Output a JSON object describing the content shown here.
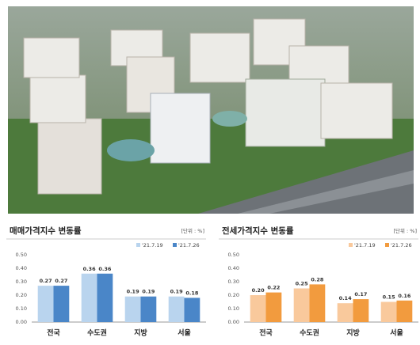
{
  "chart_data": [
    {
      "type": "bar",
      "title": "매매가격지수 변동률",
      "unit_label": "[단위 : %]",
      "categories": [
        "전국",
        "수도권",
        "지방",
        "서울"
      ],
      "series": [
        {
          "name": "'21.7.19",
          "color": "#b9d4ee",
          "values": [
            0.27,
            0.36,
            0.19,
            0.19
          ],
          "value_labels": [
            "0.27",
            "0.36",
            "0.19",
            "0.19"
          ]
        },
        {
          "name": "'21.7.26",
          "color": "#4a86c8",
          "values": [
            0.27,
            0.36,
            0.19,
            0.18
          ],
          "value_labels": [
            "0.27",
            "0.36",
            "0.19",
            "0.18"
          ]
        }
      ],
      "ylim": [
        0,
        0.5
      ],
      "yticks": [
        {
          "value": 0,
          "label": "0.00"
        },
        {
          "value": 0.1,
          "label": "0.10"
        },
        {
          "value": 0.2,
          "label": "0.20"
        },
        {
          "value": 0.3,
          "label": "0.30"
        },
        {
          "value": 0.4,
          "label": "0.40"
        },
        {
          "value": 0.5,
          "label": "0.50"
        }
      ],
      "grid": false
    },
    {
      "type": "bar",
      "title": "전세가격지수 변동률",
      "unit_label": "[단위 : %]",
      "categories": [
        "전국",
        "수도권",
        "지방",
        "서울"
      ],
      "series": [
        {
          "name": "'21.7.19",
          "color": "#f9c99c",
          "values": [
            0.2,
            0.25,
            0.14,
            0.15
          ],
          "value_labels": [
            "0.20",
            "0.25",
            "0.14",
            "0.15"
          ]
        },
        {
          "name": "'21.7.26",
          "color": "#f29b3e",
          "values": [
            0.22,
            0.28,
            0.17,
            0.16
          ],
          "value_labels": [
            "0.22",
            "0.28",
            "0.17",
            "0.16"
          ]
        }
      ],
      "ylim": [
        0,
        0.5
      ],
      "yticks": [
        {
          "value": 0,
          "label": "0.00"
        },
        {
          "value": 0.1,
          "label": "0.10"
        },
        {
          "value": 0.2,
          "label": "0.20"
        },
        {
          "value": 0.3,
          "label": "0.30"
        },
        {
          "value": 0.4,
          "label": "0.40"
        },
        {
          "value": 0.5,
          "label": "0.50"
        }
      ],
      "grid": false
    }
  ]
}
